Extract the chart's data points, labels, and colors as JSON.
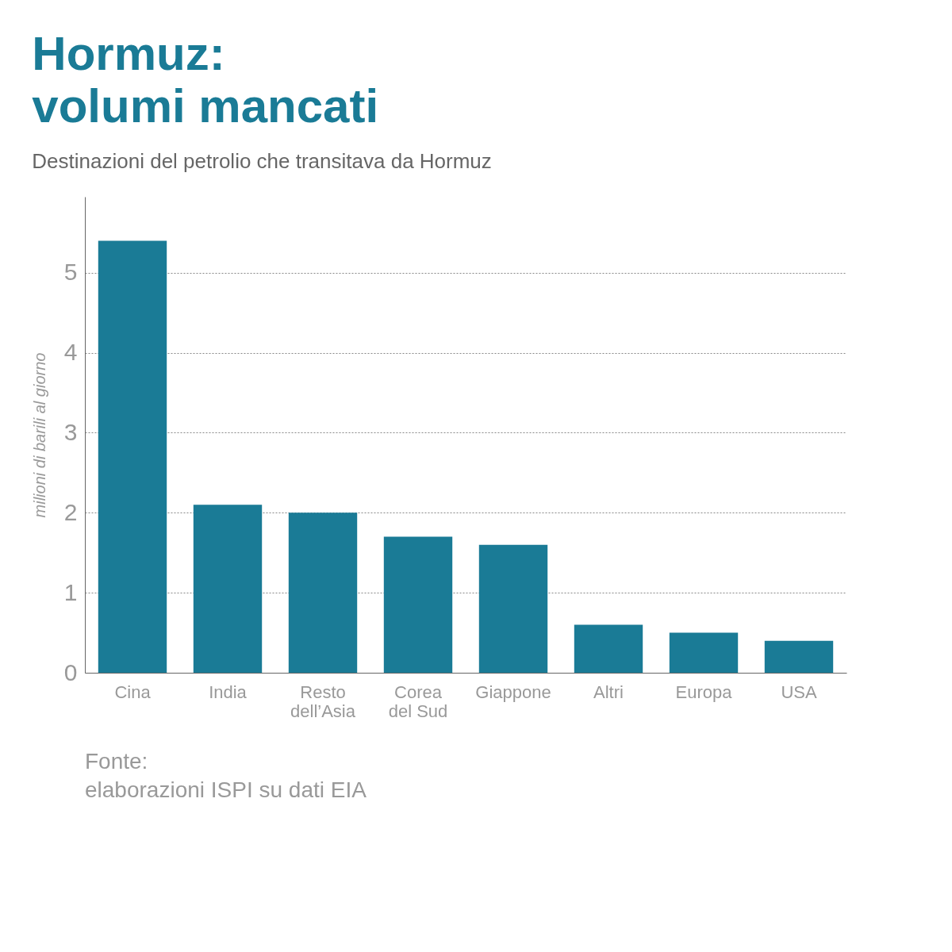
{
  "chart_data": {
    "type": "bar",
    "title": "Hormuz: volumi mancati",
    "subtitle": "Destinazioni del petrolio che transitava da Hormuz",
    "ylabel": "milioni di barili al giorno",
    "categories": [
      "Cina",
      "India",
      "Resto dell’Asia",
      "Corea del Sud",
      "Giappone",
      "Altri",
      "Europa",
      "USA"
    ],
    "values": [
      5.4,
      2.1,
      2.0,
      1.7,
      1.6,
      0.6,
      0.5,
      0.4
    ],
    "color": "#1a7b96",
    "ylim": [
      0,
      5.95
    ],
    "yticks": [
      0,
      1,
      2,
      3,
      4,
      5
    ],
    "grid": "y",
    "annotations": [
      "Fonte: elaborazioni ISPI su dati EIA"
    ]
  }
}
